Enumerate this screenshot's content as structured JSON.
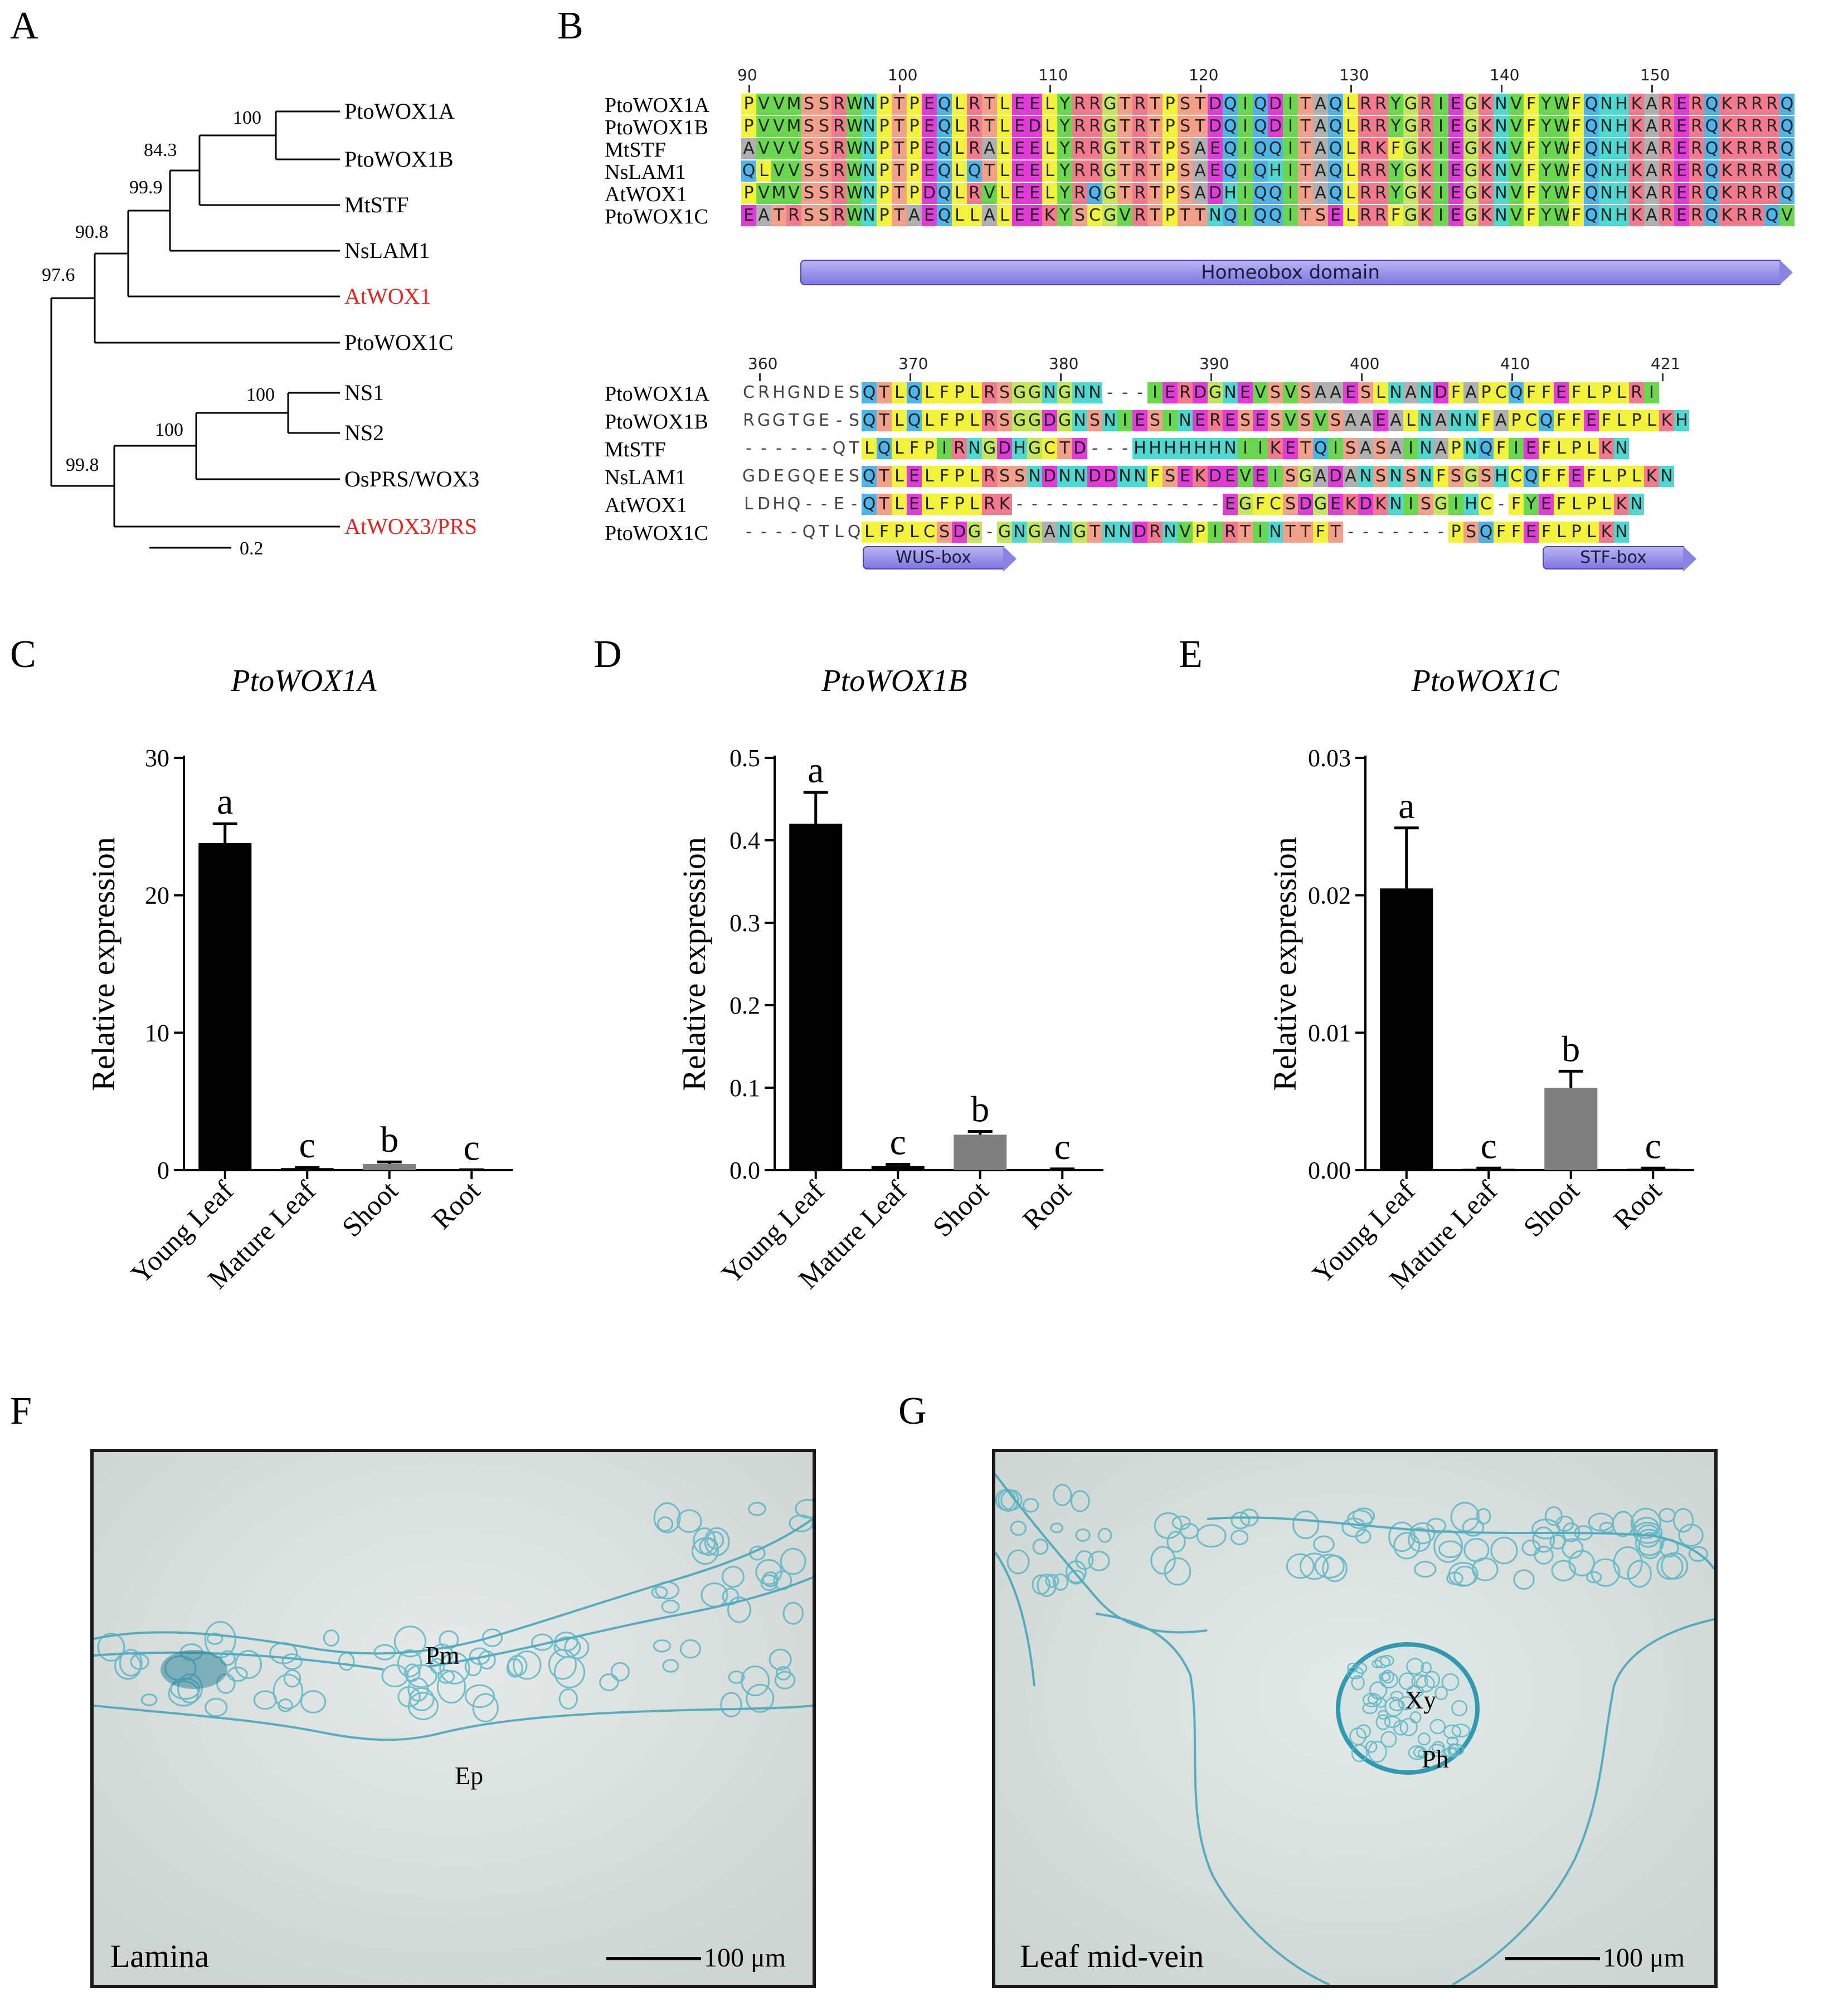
{
  "panels": {
    "A": "A",
    "B": "B",
    "C": "C",
    "D": "D",
    "E": "E",
    "F": "F",
    "G": "G"
  },
  "tree": {
    "leaves": [
      {
        "name": "PtoWOX1A",
        "color": "#000000"
      },
      {
        "name": "PtoWOX1B",
        "color": "#000000"
      },
      {
        "name": "MtSTF",
        "color": "#000000"
      },
      {
        "name": "NsLAM1",
        "color": "#000000"
      },
      {
        "name": "AtWOX1",
        "color": "#e8211c"
      },
      {
        "name": "PtoWOX1C",
        "color": "#000000"
      },
      {
        "name": "NS1",
        "color": "#000000"
      },
      {
        "name": "NS2",
        "color": "#000000"
      },
      {
        "name": "OsPRS/WOX3",
        "color": "#000000"
      },
      {
        "name": "AtWOX3/PRS",
        "color": "#e8211c"
      }
    ],
    "bootstraps": [
      "100",
      "84.3",
      "99.9",
      "90.8",
      "97.6",
      "100",
      "100",
      "99.8"
    ],
    "scale_label": "0.2"
  },
  "alignment": {
    "block1": {
      "ruler": [
        "90",
        "100",
        "110",
        "120",
        "130",
        "140",
        "150"
      ],
      "names": [
        "PtoWOX1A",
        "PtoWOX1B",
        "MtSTF",
        "NsLAM1",
        "AtWOX1",
        "PtoWOX1C"
      ],
      "seqs": [
        "PVVMSSRWNPTPEQLRTLEELYRRGTRTPSTDQIQDITAQLRRYGRIEGKNVFYWFQNHKARERQKRRRQ",
        "PVVMSSRWNPTPEQLRTLEDLYRRGTRTPSTDQIQDITAQLRRYGRIEGKNVFYWFQNHKARERQKRRRQ",
        "AVVVSSRWNPTPEQLRALEELYRRGTRTPSAEQIQQITAQLRKFGKIEGKNVFYWFQNHKARERQKRRRQ",
        "QLVVSSRWNPTPEQLQTLEELYRRGTRTPSAEQIQHITAQLRRYGKIEGKNVFYWFQNHKARERQKRRRQ",
        "PVMVSSRWNPTPDQLRVLEELYRQGTRTPSADHIQQITAQLRRYGKIEGKNVFYWFQNHKARERQKRRRQ",
        "EATRSSRWNPTAEQLLALEEKYSCGVRTPTTNQIQQITSELRRFGKIEGKNVFYWFQNHKARERQKRRQV"
      ],
      "domain": "Homeobox domain"
    },
    "block2": {
      "ruler": [
        "360",
        "370",
        "380",
        "390",
        "400",
        "410",
        "421"
      ],
      "names": [
        "PtoWOX1A",
        "PtoWOX1B",
        "MtSTF",
        "NsLAM1",
        "AtWOX1",
        "PtoWOX1C"
      ],
      "seqs": [
        "CRHGNDESQTLQLFPLRSGGNGNN---IERDGNEVSVSAAESLNANDFAPCQFFEFLPLRI",
        "RGGTGE-SQTLQLFPLRSGGDGNSNIESINERESESVSVSAAEALNANNFAPCQFFEFLPLKH",
        "------QTLQLFPIRNGDHGCTD---HHHHHHNIIKETQISASAINAPNQFIEFLPLKN",
        "GDEGQEESQTLELFPLRSSNDNNDDNNFSEKDEVEISGADANSNSNFSGSHCQFFEFLPLKN",
        "LDHQ--E-QTLELFPLRK--------------EGFCSDGEKDKNISGIHC-FYEFLPLKN",
        "----QTLQLFPLCSDG-GNGANGTNNDRNVPIRTINTTFT-------PSQFFEFLPLKN"
      ],
      "domains": [
        "WUS-box",
        "STF-box"
      ]
    }
  },
  "bar_charts": [
    {
      "panel": "C",
      "chart_data": {
        "type": "bar",
        "title": "PtoWOX1A",
        "ylabel": "Relative expression",
        "categories": [
          "Young Leaf",
          "Mature Leaf",
          "Shoot",
          "Root"
        ],
        "values": [
          23.8,
          0.15,
          0.45,
          0.02
        ],
        "errors": [
          1.4,
          0.05,
          0.15,
          0.01
        ],
        "letters": [
          "a",
          "c",
          "b",
          "c"
        ],
        "bar_colors": [
          "#000000",
          "#000000",
          "#7f7f7f",
          "#000000"
        ],
        "ylim": [
          0,
          30
        ],
        "yticks": [
          "0",
          "10",
          "20",
          "30"
        ],
        "ytick_values": [
          0,
          10,
          20,
          30
        ]
      }
    },
    {
      "panel": "D",
      "chart_data": {
        "type": "bar",
        "title": "PtoWOX1B",
        "ylabel": "Relative expression",
        "categories": [
          "Young Leaf",
          "Mature Leaf",
          "Shoot",
          "Root"
        ],
        "values": [
          0.42,
          0.005,
          0.043,
          0.001
        ],
        "errors": [
          0.038,
          0.002,
          0.004,
          0.0005
        ],
        "letters": [
          "a",
          "c",
          "b",
          "c"
        ],
        "bar_colors": [
          "#000000",
          "#000000",
          "#7f7f7f",
          "#000000"
        ],
        "ylim": [
          0,
          0.5
        ],
        "yticks": [
          "0.0",
          "0.1",
          "0.2",
          "0.3",
          "0.4",
          "0.5"
        ],
        "ytick_values": [
          0,
          0.1,
          0.2,
          0.3,
          0.4,
          0.5
        ]
      }
    },
    {
      "panel": "E",
      "chart_data": {
        "type": "bar",
        "title": "PtoWOX1C",
        "ylabel": "Relative expression",
        "categories": [
          "Young Leaf",
          "Mature Leaf",
          "Shoot",
          "Root"
        ],
        "values": [
          0.0205,
          0.0001,
          0.006,
          0.0001
        ],
        "errors": [
          0.0044,
          5e-05,
          0.0012,
          5e-05
        ],
        "letters": [
          "a",
          "c",
          "b",
          "c"
        ],
        "bar_colors": [
          "#000000",
          "#000000",
          "#7f7f7f",
          "#000000"
        ],
        "ylim": [
          0,
          0.03
        ],
        "yticks": [
          "0.00",
          "0.01",
          "0.02",
          "0.03"
        ],
        "ytick_values": [
          0,
          0.01,
          0.02,
          0.03
        ]
      }
    }
  ],
  "micrographs": {
    "F": {
      "label": "Lamina",
      "tissues": [
        "Pm",
        "Ep"
      ],
      "scale": "100 μm"
    },
    "G": {
      "label": "Leaf mid-vein",
      "tissues": [
        "Xy",
        "Ph"
      ],
      "scale": "100 μm"
    }
  },
  "colors": {
    "highlight_red": "#e8211c",
    "stain_blue": "#3fa3b8"
  }
}
